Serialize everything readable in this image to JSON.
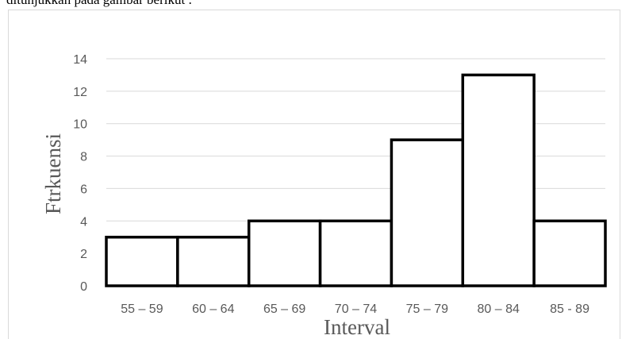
{
  "header_text": "ditunjukkan pada gambar berikut :",
  "chart_data": {
    "type": "bar",
    "title": "",
    "xlabel": "Interval",
    "ylabel": "Ftrkuensi",
    "categories": [
      "55 – 59",
      "60 – 64",
      "65 – 69",
      "70 – 74",
      "75 – 79",
      "80 – 84",
      "85 - 89"
    ],
    "values": [
      3,
      3,
      4,
      4,
      9,
      13,
      4
    ],
    "ylim": [
      0,
      14
    ],
    "yticks": [
      0,
      2,
      4,
      6,
      8,
      10,
      12,
      14
    ],
    "grid": true,
    "bar_fill": "#ffffff",
    "bar_stroke": "#000000",
    "grid_color": "#d9d9d9",
    "label_color": "#595959"
  }
}
